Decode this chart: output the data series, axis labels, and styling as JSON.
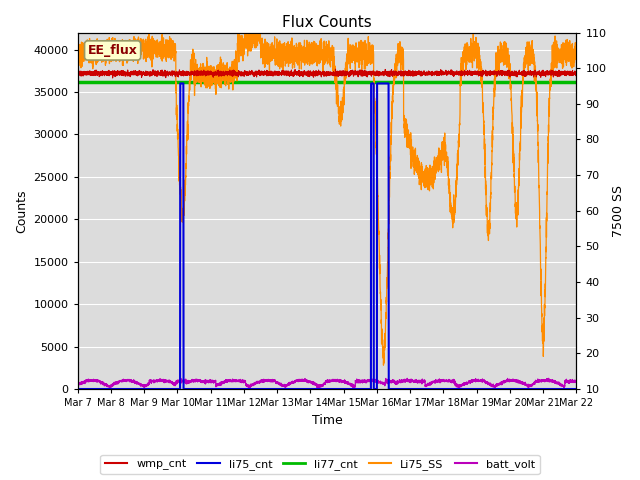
{
  "title": "Flux Counts",
  "xlabel": "Time",
  "ylabel_left": "Counts",
  "ylabel_right": "7500 SS",
  "annotation_text": "EE_flux",
  "xlim_days": [
    0,
    15
  ],
  "ylim_left": [
    0,
    42000
  ],
  "ylim_right": [
    10,
    110
  ],
  "left_yticks": [
    0,
    5000,
    10000,
    15000,
    20000,
    25000,
    30000,
    35000,
    40000
  ],
  "right_yticks": [
    10,
    20,
    30,
    40,
    50,
    60,
    70,
    80,
    90,
    100,
    110
  ],
  "x_tick_labels": [
    "Mar 7",
    "Mar 8",
    "Mar 9",
    "Mar 10",
    "Mar 11",
    "Mar 12",
    "Mar 13",
    "Mar 14",
    "Mar 15",
    "Mar 16",
    "Mar 17",
    "Mar 18",
    "Mar 19",
    "Mar 20",
    "Mar 21",
    "Mar 22"
  ],
  "x_tick_positions": [
    0,
    1,
    2,
    3,
    4,
    5,
    6,
    7,
    8,
    9,
    10,
    11,
    12,
    13,
    14,
    15
  ],
  "colors": {
    "wmp_cnt": "#cc0000",
    "li75_cnt": "#0000dd",
    "li77_cnt": "#00bb00",
    "Li75_SS": "#ff8c00",
    "batt_volt": "#bb00bb",
    "annotation_bg": "#ffffcc",
    "annotation_border": "#999966",
    "background": "#dcdcdc"
  },
  "legend_labels": [
    "wmp_cnt",
    "li75_cnt",
    "li77_cnt",
    "Li75_SS",
    "batt_volt"
  ],
  "li77_cnt_level": 36200,
  "wmp_cnt_level": 37200,
  "figsize": [
    6.4,
    4.8
  ],
  "dpi": 100
}
